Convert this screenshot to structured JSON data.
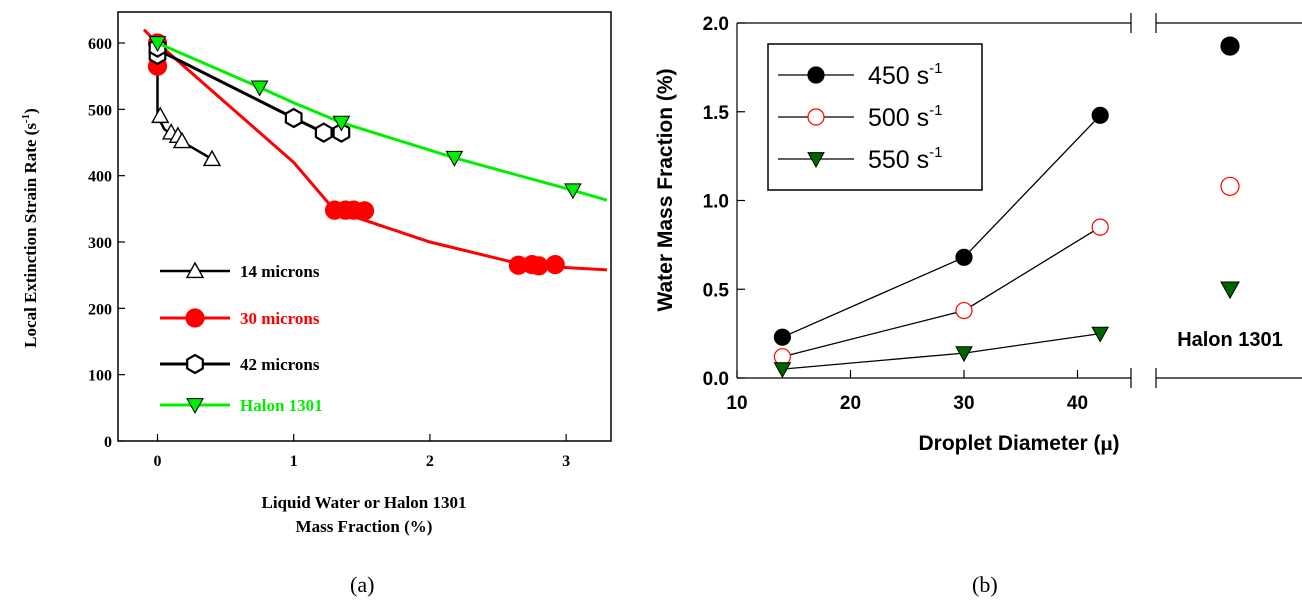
{
  "panels": {
    "a": {
      "caption": "(a)"
    },
    "b": {
      "caption": "(b)"
    }
  },
  "chart_data": [
    {
      "type": "line",
      "ylabel_main": "Local Extinction Strain Rate (s",
      "ylabel_sup": "-1",
      "ylabel_end": ")",
      "xlabel_line1": "Liquid Water or Halon 1301",
      "xlabel_line2": "Mass Fraction (%)",
      "xlim": [
        -0.2,
        3.3
      ],
      "ylim": [
        0,
        640
      ],
      "xticks": [
        "0",
        "1",
        "2",
        "3"
      ],
      "xtick_values": [
        0,
        1,
        2,
        3
      ],
      "yticks": [
        "0",
        "100",
        "200",
        "300",
        "400",
        "500",
        "600"
      ],
      "ytick_values": [
        0,
        100,
        200,
        300,
        400,
        500,
        600
      ],
      "legend_position": "bottom-left",
      "series": [
        {
          "name": "14 microns",
          "marker": "triangle-up-open",
          "color": "#000000",
          "line": [
            [
              0,
              600
            ],
            [
              0,
              490
            ],
            [
              0.05,
              470
            ],
            [
              0.15,
              455
            ],
            [
              0.4,
              425
            ]
          ],
          "points": [
            [
              0,
              575
            ],
            [
              0.02,
              490
            ],
            [
              0.1,
              465
            ],
            [
              0.15,
              460
            ],
            [
              0.18,
              452
            ],
            [
              0.4,
              425
            ]
          ]
        },
        {
          "name": "30 microns",
          "marker": "circle-filled",
          "color": "#ff0000",
          "line": [
            [
              -0.1,
              620
            ],
            [
              0,
              600
            ],
            [
              0.5,
              510
            ],
            [
              1.0,
              420
            ],
            [
              1.3,
              348
            ],
            [
              2.0,
              300
            ],
            [
              2.7,
              265
            ],
            [
              3.3,
              258
            ]
          ],
          "points": [
            [
              0,
              600
            ],
            [
              0,
              565
            ],
            [
              1.3,
              348
            ],
            [
              1.38,
              348
            ],
            [
              1.44,
              348
            ],
            [
              1.52,
              347
            ],
            [
              2.65,
              265
            ],
            [
              2.75,
              266
            ],
            [
              2.8,
              264
            ],
            [
              2.92,
              266
            ]
          ]
        },
        {
          "name": "42 microns",
          "marker": "hexagon-open",
          "color": "#000000",
          "line": [
            [
              0,
              590
            ],
            [
              1.0,
              487
            ],
            [
              1.22,
              465
            ],
            [
              1.35,
              465
            ]
          ],
          "points": [
            [
              0,
              582
            ],
            [
              0,
              593
            ],
            [
              1.0,
              487
            ],
            [
              1.22,
              465
            ],
            [
              1.35,
              465
            ]
          ]
        },
        {
          "name": "Halon 1301",
          "marker": "triangle-down-filled",
          "color": "#00ee00",
          "line": [
            [
              0,
              600
            ],
            [
              0.75,
              533
            ],
            [
              1.0,
              510
            ],
            [
              1.35,
              480
            ],
            [
              2.18,
              427
            ],
            [
              3.05,
              378
            ],
            [
              3.3,
              363
            ]
          ],
          "points": [
            [
              0,
              600
            ],
            [
              0.75,
              533
            ],
            [
              1.35,
              480
            ],
            [
              2.18,
              427
            ],
            [
              3.05,
              378
            ]
          ]
        }
      ]
    },
    {
      "type": "line",
      "ylabel": "Water Mass Fraction (%)",
      "xlabel_main": "Droplet Diameter (",
      "xlabel_symbol": "μ",
      "xlabel_end": ")",
      "xlim": [
        10,
        45
      ],
      "ylim": [
        0,
        2.0
      ],
      "xticks": [
        "10",
        "20",
        "30",
        "40"
      ],
      "xtick_values": [
        10,
        20,
        30,
        40
      ],
      "yticks": [
        "0.0",
        "0.5",
        "1.0",
        "1.5",
        "2.0"
      ],
      "ytick_values": [
        0,
        0.5,
        1.0,
        1.5,
        2.0
      ],
      "categories": [
        14,
        30,
        42
      ],
      "broken_axis_label": "Halon 1301",
      "legend_position": "top-left",
      "series": [
        {
          "name": "450 s",
          "sup": "-1",
          "marker": "circle-filled",
          "color": "#000000",
          "values": [
            0.23,
            0.68,
            1.48
          ],
          "halon": 1.87
        },
        {
          "name": "500 s",
          "sup": "-1",
          "marker": "circle-open",
          "color": "#ff0000",
          "values": [
            0.12,
            0.38,
            0.85
          ],
          "halon": 1.08
        },
        {
          "name": "550 s",
          "sup": "-1",
          "marker": "triangle-down-filled",
          "color": "#006400",
          "values": [
            0.05,
            0.14,
            0.25
          ],
          "halon": 0.5
        }
      ]
    }
  ]
}
